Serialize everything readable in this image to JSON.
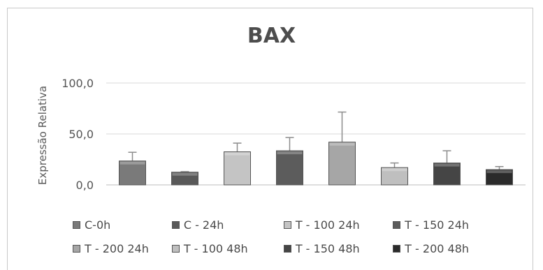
{
  "chart_data": {
    "type": "bar",
    "title": "BAX",
    "ylabel": "Expressão Relativa",
    "xlabel": "",
    "ylim": [
      0,
      100
    ],
    "yticks": [
      "0,0",
      "50,0",
      "100,0"
    ],
    "ytick_values": [
      0,
      50,
      100
    ],
    "grid": true,
    "legend_position": "bottom",
    "categories": [
      "C-0h",
      "C - 24h",
      "T -  100 24h",
      "T -  150 24h",
      "T - 200 24h",
      "T - 100 48h",
      "T - 150 48h",
      "T - 200 48h"
    ],
    "values": [
      23.5,
      12.5,
      32.5,
      33.5,
      42.0,
      17.0,
      21.5,
      15.0
    ],
    "error_upper": [
      8.5,
      0.5,
      8.5,
      13.0,
      29.5,
      4.5,
      12.0,
      3.0
    ],
    "colors": [
      "#7a7a7a",
      "#595959",
      "#c4c4c4",
      "#5c5c5c",
      "#a6a6a6",
      "#bfbfbf",
      "#454545",
      "#2b2b2b"
    ]
  }
}
